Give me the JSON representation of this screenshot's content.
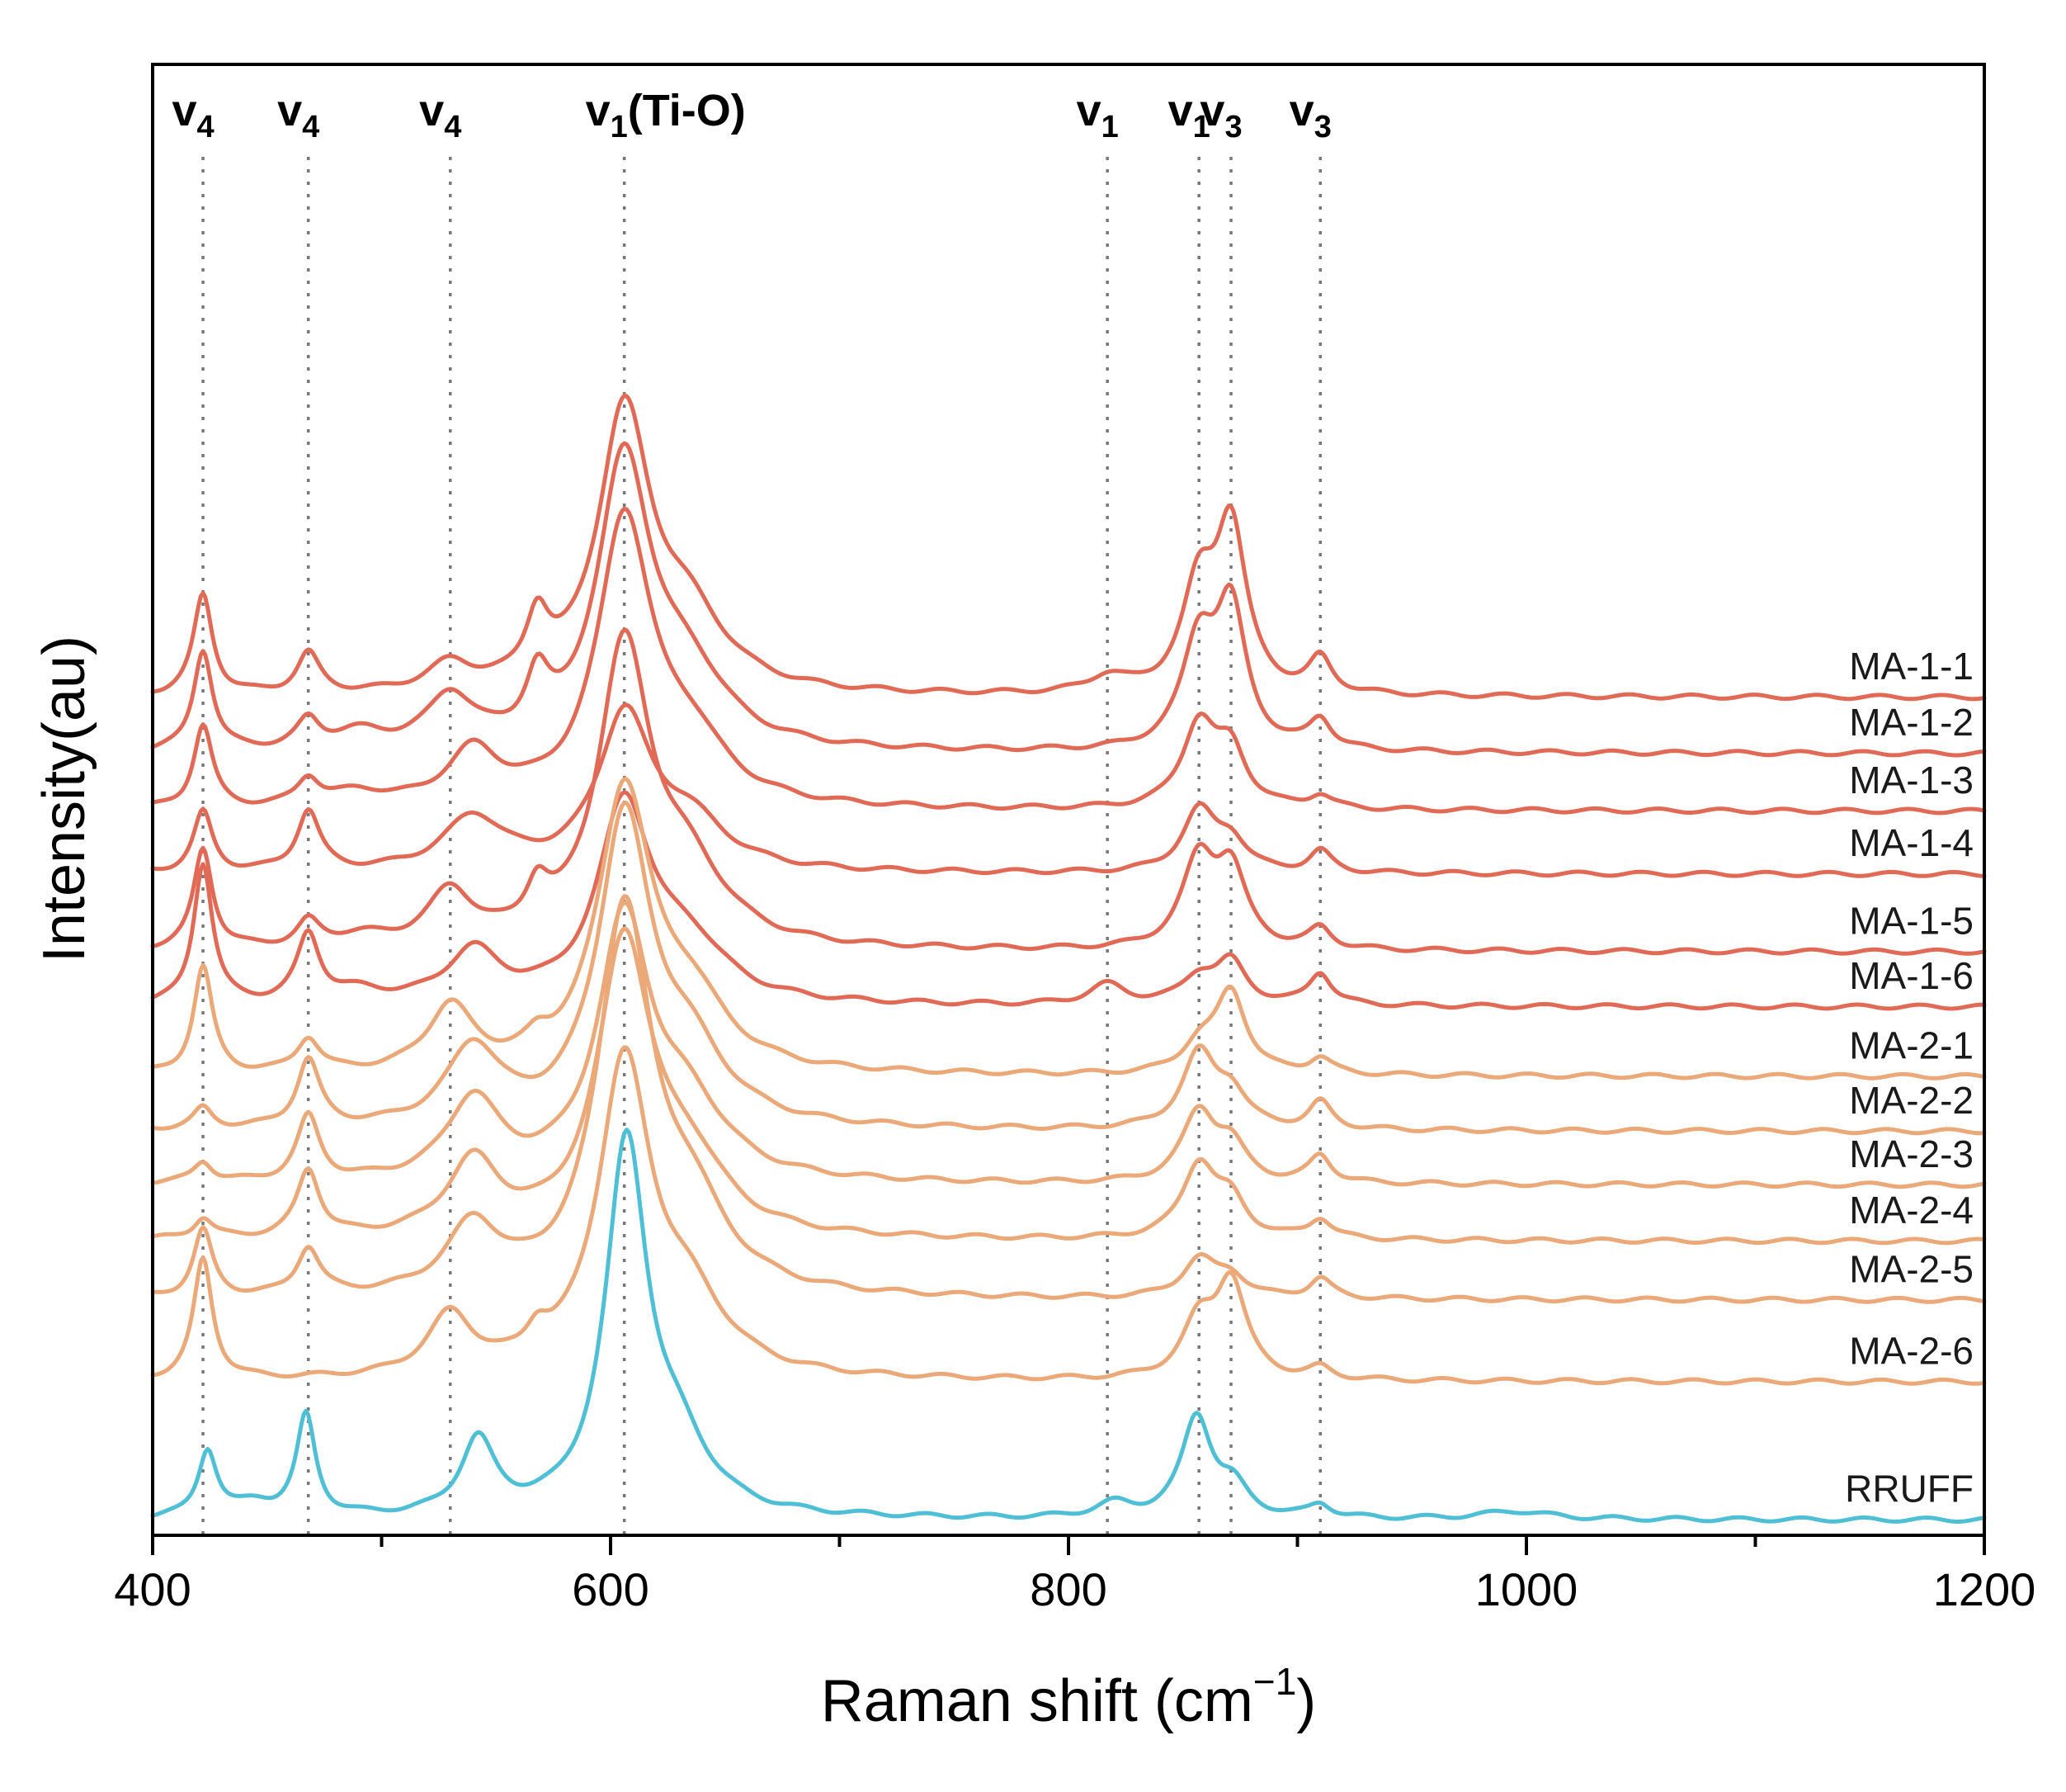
{
  "chart_data": {
    "type": "line",
    "title": "",
    "xlabel": "Raman shift (cm",
    "xlabel_sup": "−1",
    "xlabel_close": ")",
    "ylabel": "Intensity(au)",
    "xlim": [
      400,
      1200
    ],
    "ylim": [
      0,
      1.0
    ],
    "x_ticks": [
      400,
      600,
      800,
      1000,
      1200
    ],
    "x_tick_labels": [
      "400",
      "600",
      "800",
      "1000",
      "1200"
    ],
    "x_minor_ticks": [
      500,
      700,
      900,
      1100
    ],
    "grid": false,
    "colors": {
      "MA-1": "#e06a56",
      "MA-2": "#eba878",
      "RRUFF": "#4fbfd6"
    },
    "peak_markers": [
      {
        "x": 422,
        "label": "v",
        "sub": "4"
      },
      {
        "x": 468,
        "label": "v",
        "sub": "4"
      },
      {
        "x": 530,
        "label": "v",
        "sub": "4"
      },
      {
        "x": 606,
        "label": "v",
        "sub": "1",
        "suffix": "(Ti-O)"
      },
      {
        "x": 817,
        "label": "v",
        "sub": "1"
      },
      {
        "x": 857,
        "label": "v",
        "sub": "1"
      },
      {
        "x": 871,
        "label": "v",
        "sub": "3"
      },
      {
        "x": 910,
        "label": "v",
        "sub": "3"
      }
    ],
    "series": [
      {
        "name": "MA-1-1",
        "group": "MA-1",
        "offset": 0.618,
        "peaks": [
          [
            422,
            0.075,
            5
          ],
          [
            468,
            0.03,
            6
          ],
          [
            530,
            0.02,
            12
          ],
          [
            568,
            0.045,
            6
          ],
          [
            606,
            0.205,
            14
          ],
          [
            634,
            0.05,
            20
          ],
          [
            817,
            0.012,
            10
          ],
          [
            857,
            0.075,
            9
          ],
          [
            871,
            0.12,
            8
          ],
          [
            910,
            0.025,
            6
          ]
        ]
      },
      {
        "name": "MA-1-2",
        "group": "MA-1",
        "offset": 0.576,
        "peaks": [
          [
            422,
            0.075,
            5
          ],
          [
            468,
            0.02,
            6
          ],
          [
            490,
            0.012,
            15
          ],
          [
            530,
            0.038,
            12
          ],
          [
            568,
            0.04,
            6
          ],
          [
            606,
            0.212,
            14
          ],
          [
            634,
            0.05,
            20
          ],
          [
            857,
            0.078,
            9
          ],
          [
            871,
            0.1,
            8
          ],
          [
            910,
            0.022,
            6
          ]
        ]
      },
      {
        "name": "MA-1-3",
        "group": "MA-1",
        "offset": 0.533,
        "peaks": [
          [
            422,
            0.062,
            5
          ],
          [
            468,
            0.02,
            6
          ],
          [
            490,
            0.01,
            15
          ],
          [
            540,
            0.04,
            14
          ],
          [
            606,
            0.21,
            14
          ],
          [
            634,
            0.045,
            20
          ],
          [
            857,
            0.062,
            9
          ],
          [
            871,
            0.04,
            8
          ],
          [
            910,
            0.01,
            6
          ]
        ]
      },
      {
        "name": "MA-1-4",
        "group": "MA-1",
        "offset": 0.486,
        "peaks": [
          [
            422,
            0.045,
            5
          ],
          [
            468,
            0.045,
            6
          ],
          [
            540,
            0.04,
            16
          ],
          [
            606,
            0.112,
            14
          ],
          [
            634,
            0.035,
            20
          ],
          [
            857,
            0.045,
            9
          ],
          [
            871,
            0.022,
            8
          ],
          [
            910,
            0.016,
            6
          ]
        ]
      },
      {
        "name": "MA-1-5",
        "group": "MA-1",
        "offset": 0.428,
        "peaks": [
          [
            422,
            0.075,
            5
          ],
          [
            468,
            0.018,
            6
          ],
          [
            490,
            0.008,
            15
          ],
          [
            530,
            0.04,
            12
          ],
          [
            568,
            0.03,
            6
          ],
          [
            606,
            0.22,
            14
          ],
          [
            634,
            0.05,
            20
          ],
          [
            857,
            0.065,
            9
          ],
          [
            871,
            0.055,
            8
          ],
          [
            910,
            0.015,
            6
          ]
        ]
      },
      {
        "name": "MA-1-6",
        "group": "MA-1",
        "offset": 0.387,
        "peaks": [
          [
            422,
            0.105,
            5
          ],
          [
            468,
            0.05,
            6
          ],
          [
            490,
            0.008,
            15
          ],
          [
            540,
            0.038,
            14
          ],
          [
            606,
            0.145,
            14
          ],
          [
            634,
            0.04,
            20
          ],
          [
            817,
            0.015,
            10
          ],
          [
            857,
            0.02,
            9
          ],
          [
            871,
            0.03,
            8
          ],
          [
            910,
            0.024,
            6
          ]
        ]
      },
      {
        "name": "MA-2-1",
        "group": "MA-2",
        "offset": 0.335,
        "peaks": [
          [
            422,
            0.08,
            5
          ],
          [
            468,
            0.025,
            6
          ],
          [
            530,
            0.048,
            12
          ],
          [
            568,
            0.01,
            6
          ],
          [
            606,
            0.205,
            14
          ],
          [
            634,
            0.05,
            20
          ],
          [
            857,
            0.02,
            9
          ],
          [
            871,
            0.06,
            8
          ],
          [
            910,
            0.012,
            6
          ]
        ]
      },
      {
        "name": "MA-2-2",
        "group": "MA-2",
        "offset": 0.294,
        "peaks": [
          [
            422,
            0.015,
            5
          ],
          [
            468,
            0.05,
            6
          ],
          [
            540,
            0.058,
            14
          ],
          [
            606,
            0.225,
            14
          ],
          [
            634,
            0.05,
            20
          ],
          [
            857,
            0.055,
            9
          ],
          [
            871,
            0.025,
            8
          ],
          [
            910,
            0.02,
            6
          ]
        ]
      },
      {
        "name": "MA-2-3",
        "group": "MA-2",
        "offset": 0.254,
        "peaks": [
          [
            422,
            0.015,
            5
          ],
          [
            468,
            0.048,
            6
          ],
          [
            540,
            0.06,
            14
          ],
          [
            606,
            0.19,
            14
          ],
          [
            634,
            0.05,
            20
          ],
          [
            857,
            0.052,
            9
          ],
          [
            871,
            0.025,
            8
          ],
          [
            910,
            0.02,
            6
          ]
        ]
      },
      {
        "name": "MA-2-4",
        "group": "MA-2",
        "offset": 0.212,
        "peaks": [
          [
            422,
            0.015,
            5
          ],
          [
            468,
            0.05,
            6
          ],
          [
            540,
            0.055,
            14
          ],
          [
            606,
            0.215,
            14
          ],
          [
            634,
            0.05,
            20
          ],
          [
            857,
            0.055,
            9
          ],
          [
            871,
            0.025,
            8
          ],
          [
            910,
            0.015,
            6
          ]
        ]
      },
      {
        "name": "MA-2-5",
        "group": "MA-2",
        "offset": 0.168,
        "peaks": [
          [
            422,
            0.05,
            5
          ],
          [
            468,
            0.035,
            6
          ],
          [
            540,
            0.05,
            14
          ],
          [
            606,
            0.28,
            14
          ],
          [
            634,
            0.06,
            20
          ],
          [
            857,
            0.028,
            9
          ],
          [
            871,
            0.015,
            8
          ],
          [
            910,
            0.015,
            6
          ]
        ]
      },
      {
        "name": "MA-2-6",
        "group": "MA-2",
        "offset": 0.107,
        "peaks": [
          [
            422,
            0.09,
            5
          ],
          [
            530,
            0.045,
            12
          ],
          [
            568,
            0.018,
            6
          ],
          [
            606,
            0.23,
            14
          ],
          [
            634,
            0.05,
            20
          ],
          [
            857,
            0.04,
            9
          ],
          [
            871,
            0.07,
            8
          ],
          [
            910,
            0.008,
            6
          ]
        ]
      },
      {
        "name": "RRUFF",
        "group": "RRUFF",
        "offset": 0.004,
        "peaks": [
          [
            424,
            0.05,
            5
          ],
          [
            445,
            0.01,
            10
          ],
          [
            467,
            0.075,
            5
          ],
          [
            542,
            0.055,
            9
          ],
          [
            607,
            0.275,
            11
          ],
          [
            630,
            0.045,
            16
          ],
          [
            820,
            0.01,
            10
          ],
          [
            856,
            0.075,
            8
          ],
          [
            872,
            0.02,
            8
          ],
          [
            910,
            0.01,
            6
          ],
          [
            995,
            0.006,
            18
          ]
        ]
      }
    ],
    "legend_placement": "inline-right"
  }
}
